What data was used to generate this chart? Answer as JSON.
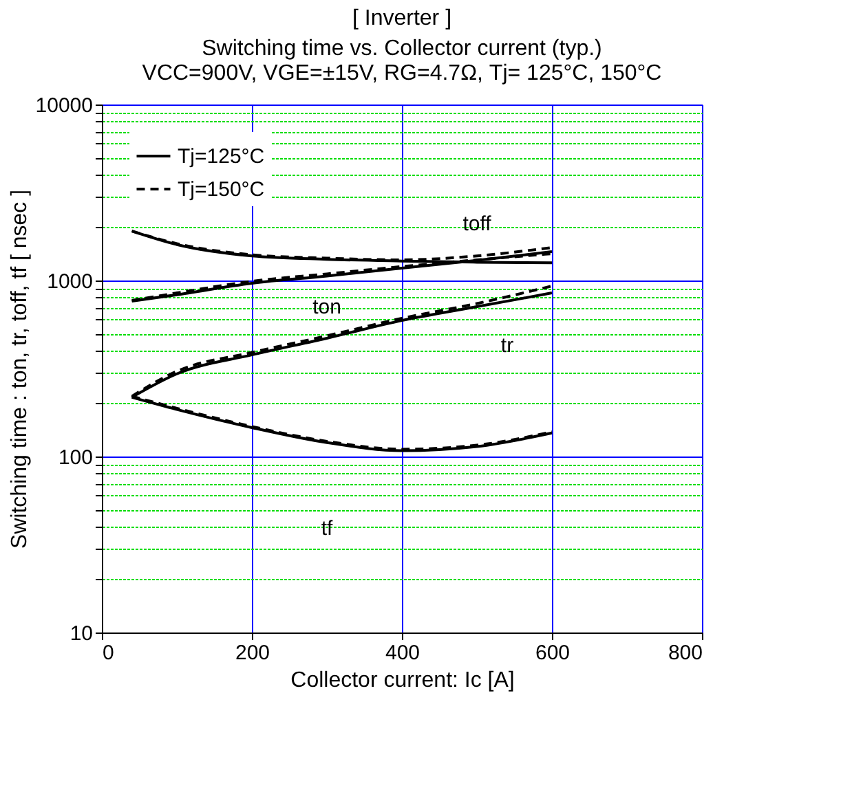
{
  "chart_data": {
    "type": "line",
    "title": "[ Inverter ]",
    "subtitle": "Switching time  vs.  Collector current  (typ.)\nVCC=900V, VGE=±15V, RG=4.7Ω, Tj= 125°C, 150°C",
    "xlabel": "Collector current: Ic [A]",
    "ylabel": "Switching time  :  ton, tr, toff, tf  [ nsec ]",
    "x": [
      40,
      100,
      200,
      300,
      400,
      500,
      600
    ],
    "series": [
      {
        "name": "Tj=125°C",
        "color": "#000000",
        "line_style": "solid",
        "values": [
          1910,
          1600,
          1380,
          1320,
          1290,
          1270,
          1260
        ]
      },
      {
        "name": "Tj=150°C",
        "color": "#000000",
        "line_style": "dashed",
        "values": [
          1910,
          1620,
          1400,
          1340,
          1310,
          1380,
          1540
        ]
      },
      {
        "color": "#000000",
        "line_style": "solid",
        "values": [
          764,
          830,
          965,
          1060,
          1176,
          1300,
          1459
        ]
      },
      {
        "color": "#000000",
        "line_style": "dashed",
        "values": [
          770,
          850,
          990,
          1090,
          1200,
          1310,
          1420
        ]
      },
      {
        "color": "#000000",
        "line_style": "solid",
        "values": [
          217,
          295,
          378,
          470,
          593,
          710,
          850
        ]
      },
      {
        "color": "#000000",
        "line_style": "dashed",
        "values": [
          220,
          305,
          390,
          485,
          610,
          740,
          930
        ]
      },
      {
        "color": "#000000",
        "line_style": "solid",
        "values": [
          217,
          185,
          146,
          120,
          108,
          114,
          136
        ]
      },
      {
        "color": "#000000",
        "line_style": "dashed",
        "values": [
          220,
          188,
          148,
          122,
          110,
          116,
          138
        ]
      }
    ],
    "annotations": [
      "toff",
      "ton",
      "tr",
      "tf"
    ],
    "log": "y",
    "xlim": [
      0,
      800
    ],
    "xticks": [
      0,
      200,
      400,
      600,
      800
    ],
    "ylim": [
      10,
      10000
    ],
    "yticks": [
      10,
      {
        "value": 20,
        "label": null
      },
      {
        "value": 30,
        "label": null
      },
      {
        "value": 40,
        "label": null
      },
      {
        "value": 50,
        "label": null
      },
      {
        "value": 60,
        "label": null
      },
      {
        "value": 70,
        "label": null
      },
      {
        "value": 80,
        "label": null
      },
      {
        "value": 90,
        "label": null
      },
      100,
      {
        "value": 200,
        "label": null
      },
      {
        "value": 300,
        "label": null
      },
      {
        "value": 400,
        "label": null
      },
      {
        "value": 500,
        "label": null
      },
      {
        "value": 600,
        "label": null
      },
      {
        "value": 700,
        "label": null
      },
      {
        "value": 800,
        "label": null
      },
      {
        "value": 900,
        "label": null
      },
      1000,
      {
        "value": 2000,
        "label": null
      },
      {
        "value": 3000,
        "label": null
      },
      {
        "value": 4000,
        "label": null
      },
      {
        "value": 5000,
        "label": null
      },
      {
        "value": 6000,
        "label": null
      },
      {
        "value": 7000,
        "label": null
      },
      {
        "value": 8000,
        "label": null
      },
      {
        "value": 9000,
        "label": null
      },
      10000
    ],
    "grid": true,
    "legend": "top left"
  }
}
